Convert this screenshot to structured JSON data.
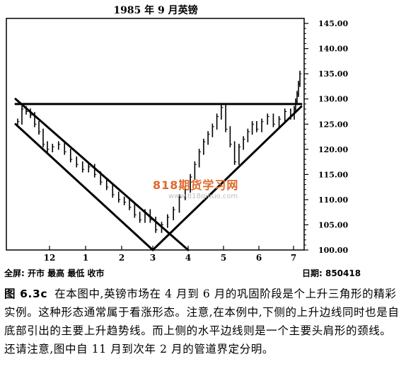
{
  "chart_data": {
    "type": "bar",
    "style": "ohlc-price-bars",
    "title": "1985 年 9 月英镑",
    "x_tick_labels": [
      "12",
      "1",
      "2",
      "3",
      "4",
      "5",
      "6",
      "7"
    ],
    "y_tick_labels": [
      "145.00",
      "140.00",
      "135.00",
      "130.00",
      "125.00",
      "120.00",
      "115.00",
      "110.00",
      "105.00",
      "100.00"
    ],
    "ylim": [
      100,
      146
    ],
    "grid": false,
    "price_series": [
      {
        "month": "11",
        "close": 125.5
      },
      {
        "month": "11",
        "close": 128.0
      },
      {
        "month": "11",
        "close": 127.5
      },
      {
        "month": "11",
        "close": 126.8
      },
      {
        "month": "11",
        "close": 125.0
      },
      {
        "month": "11",
        "close": 123.5
      },
      {
        "month": "11",
        "close": 121.0
      },
      {
        "month": "11",
        "close": 120.0
      },
      {
        "month": "12",
        "close": 120.5
      },
      {
        "month": "12",
        "close": 121.0
      },
      {
        "month": "12",
        "close": 119.5
      },
      {
        "month": "12",
        "close": 118.0
      },
      {
        "month": "12",
        "close": 117.0
      },
      {
        "month": "12",
        "close": 116.0
      },
      {
        "month": "1",
        "close": 116.5
      },
      {
        "month": "1",
        "close": 115.0
      },
      {
        "month": "1",
        "close": 113.5
      },
      {
        "month": "1",
        "close": 112.5
      },
      {
        "month": "1",
        "close": 111.0
      },
      {
        "month": "1",
        "close": 110.0
      },
      {
        "month": "2",
        "close": 109.5
      },
      {
        "month": "2",
        "close": 108.5
      },
      {
        "month": "2",
        "close": 107.0
      },
      {
        "month": "2",
        "close": 106.0
      },
      {
        "month": "2",
        "close": 107.5
      },
      {
        "month": "2",
        "close": 106.0
      },
      {
        "month": "3",
        "close": 104.0
      },
      {
        "month": "3",
        "close": 105.0
      },
      {
        "month": "3",
        "close": 106.5
      },
      {
        "month": "3",
        "close": 108.0
      },
      {
        "month": "3",
        "close": 110.5
      },
      {
        "month": "3",
        "close": 112.0
      },
      {
        "month": "4",
        "close": 114.5
      },
      {
        "month": "4",
        "close": 117.0
      },
      {
        "month": "4",
        "close": 119.5
      },
      {
        "month": "4",
        "close": 121.5
      },
      {
        "month": "4",
        "close": 123.0
      },
      {
        "month": "4",
        "close": 124.5
      },
      {
        "month": "4",
        "close": 126.5
      },
      {
        "month": "4",
        "close": 128.3
      },
      {
        "month": "5",
        "close": 124.0
      },
      {
        "month": "5",
        "close": 121.0
      },
      {
        "month": "5",
        "close": 117.5
      },
      {
        "month": "5",
        "close": 120.5
      },
      {
        "month": "5",
        "close": 122.0
      },
      {
        "month": "5",
        "close": 123.5
      },
      {
        "month": "5",
        "close": 125.0
      },
      {
        "month": "5",
        "close": 124.0
      },
      {
        "month": "6",
        "close": 125.5
      },
      {
        "month": "6",
        "close": 126.5
      },
      {
        "month": "6",
        "close": 125.0
      },
      {
        "month": "6",
        "close": 126.0
      },
      {
        "month": "6",
        "close": 127.5
      },
      {
        "month": "6",
        "close": 126.5
      },
      {
        "month": "7",
        "close": 128.0
      },
      {
        "month": "7",
        "close": 129.5
      },
      {
        "month": "7",
        "close": 131.0
      },
      {
        "month": "7",
        "close": 133.0
      },
      {
        "month": "7",
        "close": 135.0
      }
    ],
    "trendlines": [
      {
        "kind": "channel-upper",
        "from": {
          "month": "11",
          "price": 130.0
        },
        "to": {
          "month": "4",
          "price": 100.0
        }
      },
      {
        "kind": "channel-lower",
        "from": {
          "month": "11",
          "price": 125.0
        },
        "to": {
          "month": "3",
          "price": 100.0
        }
      },
      {
        "kind": "horizontal-neckline",
        "from": {
          "month": "11",
          "price": 129.0
        },
        "to": {
          "month": "7",
          "price": 129.0
        }
      },
      {
        "kind": "rising-trendline",
        "from": {
          "month": "3",
          "price": 100.0
        },
        "to": {
          "month": "7",
          "price": 128.5
        }
      }
    ]
  },
  "footer": {
    "left": "全屏:  开市   最高    最低      收市",
    "right": "日期:  850418"
  },
  "watermark": {
    "title": "818期货学习网",
    "url": "www.818qihuo.com"
  },
  "caption": {
    "figure_label": "图 6.3c",
    "text": "在本图中,英镑市场在 4 月到 6 月的巩固阶段是个上升三角形的精彩实例。这种形态通常属于看涨形态。注意,在本例中,下侧的上升边线同时也是自底部引出的主要上升趋势线。而上侧的水平边线则是一个主要头肩形的颈线。还请注意,图中自 11 月到次年 2 月的管道界定分明。"
  },
  "colors": {
    "ink": "#000000",
    "watermark_red": "#e06a2a"
  }
}
